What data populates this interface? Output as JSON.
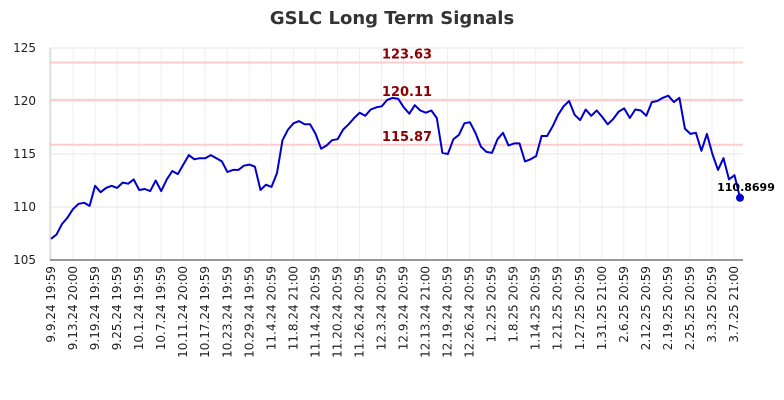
{
  "chart_data": {
    "type": "line",
    "title": "GSLC Long Term Signals",
    "xlabel": "",
    "ylabel": "",
    "ylim": [
      105,
      125
    ],
    "yticks": [
      105,
      110,
      115,
      120,
      125
    ],
    "grid": true,
    "x_tick_labels": [
      "9.9.24 19:59",
      "9.13.24 20:00",
      "9.19.24 19:59",
      "9.25.24 19:59",
      "10.1.24 19:59",
      "10.7.24 19:59",
      "10.11.24 20:00",
      "10.17.24 19:59",
      "10.23.24 19:59",
      "10.29.24 19:59",
      "11.4.24 20:59",
      "11.8.24 21:00",
      "11.14.24 20:59",
      "11.20.24 20:59",
      "11.26.24 20:59",
      "12.3.24 20:59",
      "12.9.24 20:59",
      "12.13.24 21:00",
      "12.19.24 20:59",
      "12.26.24 20:59",
      "1.2.25 20:59",
      "1.8.25 20:59",
      "1.14.25 20:59",
      "1.21.25 20:59",
      "1.27.25 20:59",
      "1.31.25 21:00",
      "2.6.25 20:59",
      "2.12.25 20:59",
      "2.19.25 20:59",
      "2.25.25 20:59",
      "3.3.25 20:59",
      "3.7.25 21:00"
    ],
    "levels": [
      {
        "value": 123.63,
        "label": "123.63",
        "color": "#ffcccc"
      },
      {
        "value": 120.11,
        "label": "120.11",
        "color": "#ffcccc"
      },
      {
        "value": 115.87,
        "label": "115.87",
        "color": "#ffcccc"
      }
    ],
    "series": [
      {
        "color": "#0000cc",
        "values": [
          107.0,
          107.4,
          108.4,
          109.0,
          109.8,
          110.3,
          110.4,
          110.1,
          112.0,
          111.4,
          111.8,
          112.0,
          111.8,
          112.3,
          112.2,
          112.6,
          111.6,
          111.7,
          111.5,
          112.5,
          111.5,
          112.6,
          113.4,
          113.1,
          114.0,
          114.9,
          114.5,
          114.6,
          114.6,
          114.9,
          114.6,
          114.3,
          113.3,
          113.5,
          113.5,
          113.9,
          114.0,
          113.8,
          111.6,
          112.1,
          111.9,
          113.2,
          116.3,
          117.3,
          117.9,
          118.1,
          117.8,
          117.8,
          116.9,
          115.5,
          115.8,
          116.3,
          116.4,
          117.3,
          117.8,
          118.4,
          118.9,
          118.6,
          119.2,
          119.4,
          119.5,
          120.1,
          120.3,
          120.2,
          119.4,
          118.8,
          119.6,
          119.1,
          118.9,
          119.1,
          118.4,
          115.1,
          115.0,
          116.4,
          116.8,
          117.9,
          118.0,
          117.0,
          115.7,
          115.2,
          115.1,
          116.4,
          117.0,
          115.8,
          116.0,
          116.0,
          114.3,
          114.5,
          114.8,
          116.7,
          116.7,
          117.6,
          118.7,
          119.5,
          120.0,
          118.7,
          118.2,
          119.2,
          118.6,
          119.1,
          118.5,
          117.8,
          118.3,
          119.0,
          119.3,
          118.4,
          119.2,
          119.1,
          118.6,
          119.9,
          120.0,
          120.3,
          120.5,
          119.9,
          120.3,
          117.4,
          116.9,
          117.0,
          115.3,
          116.9,
          115.0,
          113.5,
          114.6,
          112.6,
          113.0,
          110.8699
        ]
      }
    ],
    "last_value": 110.8699,
    "last_value_label": "110.8699"
  }
}
